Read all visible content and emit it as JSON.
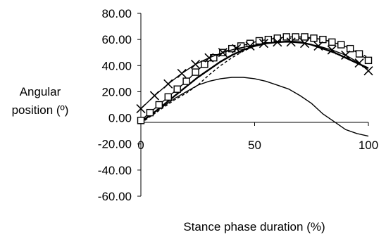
{
  "chart_data": {
    "type": "line",
    "title": "",
    "xlabel": "Stance phase duration (%)",
    "ylabel": [
      "Angular",
      "position (º)"
    ],
    "xlim": [
      0,
      100
    ],
    "ylim": [
      -60,
      80
    ],
    "x_ticks": [
      0,
      50,
      100
    ],
    "x_tick_labels": [
      "0",
      "50",
      "100"
    ],
    "y_ticks": [
      80,
      60,
      40,
      20,
      0,
      -20,
      -40,
      -60
    ],
    "y_tick_labels": [
      "80.00",
      "60.00",
      "40.00",
      "20.00",
      "0.00",
      "-20.00",
      "-40.00",
      "-60.00"
    ],
    "grid": false,
    "legend": "none",
    "series": [
      {
        "style": "solid-thin",
        "color": "#000000",
        "x": [
          0,
          5,
          10,
          15,
          20,
          25,
          30,
          35,
          40,
          45,
          50,
          55,
          60,
          65,
          70,
          75,
          80,
          85,
          90,
          95,
          100
        ],
        "y": [
          -4,
          3,
          9,
          15,
          20,
          25,
          28,
          30,
          31,
          31,
          30,
          28,
          25,
          22,
          17,
          11,
          3,
          -3,
          -9,
          -12,
          -14
        ]
      },
      {
        "style": "solid-bold",
        "color": "#000000",
        "x": [
          0,
          5,
          10,
          15,
          20,
          25,
          30,
          35,
          40,
          45,
          50,
          55,
          60,
          65,
          70,
          75,
          80,
          85,
          90,
          95,
          100
        ],
        "y": [
          -3,
          3,
          10,
          17,
          24,
          31,
          37,
          43,
          48,
          52,
          55,
          57,
          58,
          58.5,
          58,
          56,
          53,
          50,
          46,
          42,
          38
        ]
      },
      {
        "style": "dashed",
        "color": "#000000",
        "x": [
          0,
          5,
          10,
          15,
          20,
          25,
          30,
          35,
          40,
          45,
          50,
          55,
          60,
          65,
          70,
          75,
          80,
          85,
          90,
          95,
          100
        ],
        "y": [
          -4,
          2,
          8,
          14,
          19,
          25,
          33,
          40,
          46,
          51,
          55,
          58,
          60,
          61,
          61,
          61,
          60,
          58,
          55,
          51,
          46
        ]
      },
      {
        "marker": "square",
        "color": "#000000",
        "x": [
          0,
          4,
          8,
          12,
          16,
          20,
          24,
          28,
          32,
          36,
          40,
          44,
          48,
          52,
          56,
          60,
          64,
          68,
          72,
          76,
          80,
          84,
          88,
          92,
          96,
          100
        ],
        "y": [
          -2,
          4,
          10,
          16,
          22,
          28,
          35,
          41,
          46,
          50,
          53,
          55,
          57,
          59,
          60,
          61,
          62,
          62,
          62,
          61,
          60,
          58,
          56,
          53,
          49,
          44
        ]
      },
      {
        "marker": "cross",
        "color": "#000000",
        "x": [
          0,
          6,
          12,
          18,
          24,
          30,
          36,
          42,
          48,
          54,
          60,
          66,
          72,
          78,
          84,
          90,
          96,
          100
        ],
        "y": [
          7,
          17,
          26,
          34,
          41,
          46,
          50,
          53,
          55,
          57,
          58,
          58,
          57,
          55,
          52,
          48,
          42,
          36
        ]
      }
    ]
  }
}
